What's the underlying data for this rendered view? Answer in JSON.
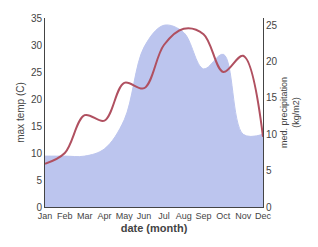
{
  "chart_data": {
    "type": "line",
    "categories": [
      "Jan",
      "Feb",
      "Mar",
      "Apr",
      "May",
      "Jun",
      "Jul",
      "Aug",
      "Sep",
      "Oct",
      "Nov",
      "Dec"
    ],
    "series": [
      {
        "type": "line",
        "color": "#b05060",
        "values": [
          8,
          10,
          17,
          16,
          23,
          22,
          30,
          33,
          32,
          25,
          28,
          13
        ]
      },
      {
        "type": "area",
        "color": "#bcc5ee",
        "axis": "y2",
        "values": [
          7,
          7,
          7,
          8,
          12,
          22,
          25,
          24,
          19,
          21,
          10,
          10
        ]
      }
    ],
    "xlabel": "date (month)",
    "ylabel": "max temp (C)",
    "y2label": "med. precipitation\n(kg/m2)",
    "ylim": [
      0,
      35
    ],
    "yticks": [
      0,
      5,
      10,
      15,
      20,
      25,
      30,
      35
    ],
    "y2lim": [
      0,
      26
    ],
    "y2ticks": [
      0,
      5,
      10,
      15,
      20,
      25
    ],
    "grid": false
  }
}
